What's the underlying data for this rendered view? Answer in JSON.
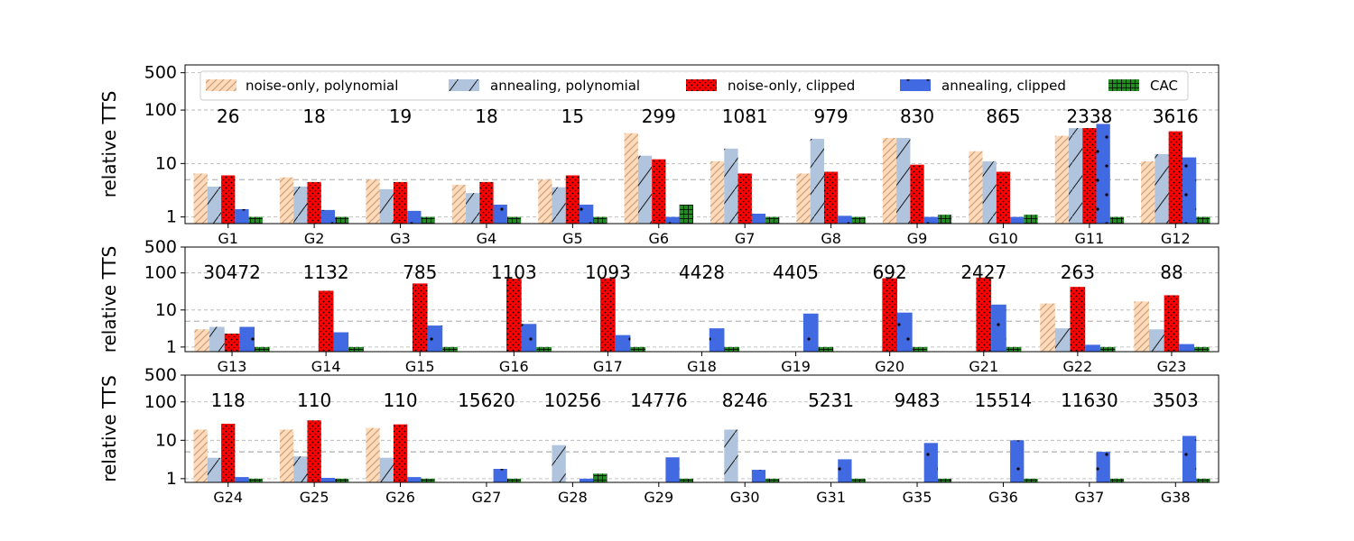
{
  "legend": {
    "entries": [
      {
        "key": "np",
        "label": "noise-only, polynomial"
      },
      {
        "key": "ap",
        "label": "annealing, polynomial"
      },
      {
        "key": "nc",
        "label": "noise-only, clipped"
      },
      {
        "key": "ac",
        "label": "annealing, clipped"
      },
      {
        "key": "cac",
        "label": "CAC"
      }
    ]
  },
  "colors": {
    "np": "#ffdab9",
    "ap": "#b0c4de",
    "nc": "#ff0000",
    "ac": "#4169e1",
    "cac": "#228b22",
    "grid": "#b0b0b0",
    "dashed_ref": "#999999"
  },
  "chart_data": [
    {
      "type": "bar",
      "yscale": "log",
      "ylabel": "relative TTS",
      "ylim": [
        0.75,
        700
      ],
      "yticks": [
        1,
        10,
        100,
        500
      ],
      "ytick_labels": [
        "1",
        "10",
        "100",
        "500"
      ],
      "grid": "y-major dashed",
      "reference_line": 5,
      "categories": [
        "G1",
        "G2",
        "G3",
        "G4",
        "G5",
        "G6",
        "G7",
        "G8",
        "G9",
        "G10",
        "G11",
        "G12"
      ],
      "annotations": [
        "26",
        "18",
        "19",
        "18",
        "15",
        "299",
        "1081",
        "979",
        "830",
        "865",
        "2338",
        "3616"
      ],
      "series": [
        {
          "key": "np",
          "name": "noise-only, polynomial",
          "values": [
            6.5,
            5.5,
            5,
            4,
            5,
            37,
            11,
            6.5,
            30,
            17,
            33,
            11
          ]
        },
        {
          "key": "ap",
          "name": "annealing, polynomial",
          "values": [
            3.7,
            3.7,
            3.3,
            2.8,
            3.6,
            14,
            19,
            29,
            30,
            11,
            46,
            15
          ]
        },
        {
          "key": "nc",
          "name": "noise-only, clipped",
          "values": [
            6,
            4.5,
            4.5,
            4.5,
            6,
            12,
            6.5,
            7,
            9.5,
            7,
            46,
            40
          ]
        },
        {
          "key": "ac",
          "name": "annealing, clipped",
          "values": [
            1.4,
            1.35,
            1.3,
            1.7,
            1.7,
            1,
            1.15,
            1.05,
            1,
            1,
            55,
            13
          ]
        },
        {
          "key": "cac",
          "name": "CAC",
          "values": [
            1,
            1,
            1,
            1,
            1,
            1.7,
            1,
            1,
            1.1,
            1.1,
            1,
            1
          ]
        }
      ]
    },
    {
      "type": "bar",
      "yscale": "log",
      "ylabel": "relative TTS",
      "ylim": [
        0.75,
        500
      ],
      "yticks": [
        1,
        10,
        100,
        500
      ],
      "ytick_labels": [
        "1",
        "10",
        "100",
        "500"
      ],
      "grid": "y-major dashed",
      "reference_line": 5,
      "categories": [
        "G13",
        "G14",
        "G15",
        "G16",
        "G17",
        "G18",
        "G19",
        "G20",
        "G21",
        "G22",
        "G23"
      ],
      "annotations": [
        "30472",
        "1132",
        "785",
        "1103",
        "1093",
        "4428",
        "4405",
        "692",
        "2427",
        "263",
        "88"
      ],
      "series": [
        {
          "key": "np",
          "name": "noise-only, polynomial",
          "values": [
            3,
            null,
            null,
            null,
            null,
            null,
            null,
            null,
            null,
            15,
            17
          ]
        },
        {
          "key": "ap",
          "name": "annealing, polynomial",
          "values": [
            3.5,
            null,
            null,
            null,
            null,
            null,
            null,
            null,
            null,
            3.2,
            3
          ]
        },
        {
          "key": "nc",
          "name": "noise-only, clipped",
          "values": [
            2.3,
            33,
            52,
            70,
            72,
            null,
            null,
            72,
            75,
            42,
            25
          ]
        },
        {
          "key": "ac",
          "name": "annealing, clipped",
          "values": [
            3.5,
            2.5,
            3.8,
            4.2,
            2.1,
            3.2,
            8,
            8.5,
            14,
            1.15,
            1.2
          ]
        },
        {
          "key": "cac",
          "name": "CAC",
          "values": [
            1,
            1,
            1,
            1,
            1,
            1,
            1,
            1,
            1,
            1,
            1
          ]
        }
      ]
    },
    {
      "type": "bar",
      "yscale": "log",
      "ylabel": "relative TTS",
      "ylim": [
        0.8,
        500
      ],
      "yticks": [
        1,
        10,
        100,
        500
      ],
      "ytick_labels": [
        "1",
        "10",
        "100",
        "500"
      ],
      "grid": "y-major dashed",
      "reference_line": 5,
      "categories": [
        "G24",
        "G25",
        "G26",
        "G27",
        "G28",
        "G29",
        "G30",
        "G31",
        "G35",
        "G36",
        "G37",
        "G38"
      ],
      "annotations": [
        "118",
        "110",
        "110",
        "15620",
        "10256",
        "14776",
        "8246",
        "5231",
        "9483",
        "15514",
        "11630",
        "3503"
      ],
      "series": [
        {
          "key": "np",
          "name": "noise-only, polynomial",
          "values": [
            19,
            19,
            21,
            null,
            null,
            null,
            null,
            null,
            null,
            null,
            null,
            null
          ]
        },
        {
          "key": "ap",
          "name": "annealing, polynomial",
          "values": [
            3.5,
            3.8,
            3.5,
            null,
            7.5,
            null,
            19,
            null,
            null,
            null,
            null,
            null
          ]
        },
        {
          "key": "nc",
          "name": "noise-only, clipped",
          "values": [
            27,
            33,
            26,
            null,
            null,
            null,
            null,
            null,
            null,
            null,
            null,
            null
          ]
        },
        {
          "key": "ac",
          "name": "annealing, clipped",
          "values": [
            1.1,
            1.05,
            1.1,
            1.8,
            1,
            3.6,
            1.7,
            3.2,
            8.5,
            10,
            5,
            13
          ]
        },
        {
          "key": "cac",
          "name": "CAC",
          "values": [
            1,
            1,
            1,
            1,
            1.35,
            1,
            1,
            1,
            1,
            1,
            1,
            1
          ]
        }
      ]
    }
  ]
}
